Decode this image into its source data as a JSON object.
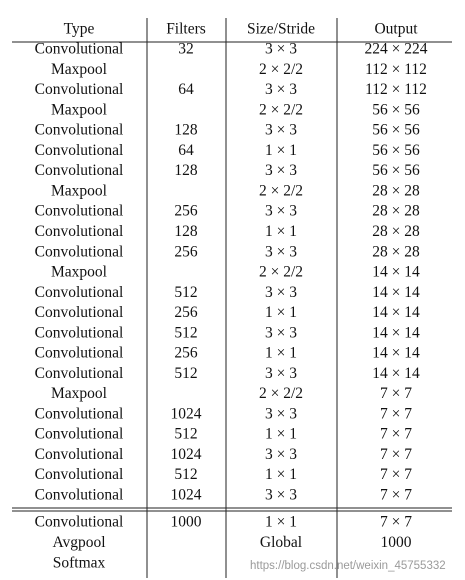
{
  "table": {
    "header": [
      "Type",
      "Filters",
      "Size/Stride",
      "Output"
    ],
    "rows": [
      [
        "Convolutional",
        "32",
        "3 × 3",
        "224 × 224"
      ],
      [
        "Maxpool",
        null,
        "2 × 2/2",
        "112 × 112"
      ],
      [
        "Convolutional",
        "64",
        "3 × 3",
        "112 × 112"
      ],
      [
        "Maxpool",
        null,
        "2 × 2/2",
        "56 × 56"
      ],
      [
        "Convolutional",
        "128",
        "3 × 3",
        "56 × 56"
      ],
      [
        "Convolutional",
        "64",
        "1 × 1",
        "56 × 56"
      ],
      [
        "Convolutional",
        "128",
        "3 × 3",
        "56 × 56"
      ],
      [
        "Maxpool",
        null,
        "2 × 2/2",
        "28 × 28"
      ],
      [
        "Convolutional",
        "256",
        "3 × 3",
        "28 × 28"
      ],
      [
        "Convolutional",
        "128",
        "1 × 1",
        "28 × 28"
      ],
      [
        "Convolutional",
        "256",
        "3 × 3",
        "28 × 28"
      ],
      [
        "Maxpool",
        null,
        "2 × 2/2",
        "14 × 14"
      ],
      [
        "Convolutional",
        "512",
        "3 × 3",
        "14 × 14"
      ],
      [
        "Convolutional",
        "256",
        "1 × 1",
        "14 × 14"
      ],
      [
        "Convolutional",
        "512",
        "3 × 3",
        "14 × 14"
      ],
      [
        "Convolutional",
        "256",
        "1 × 1",
        "14 × 14"
      ],
      [
        "Convolutional",
        "512",
        "3 × 3",
        "14 × 14"
      ],
      [
        "Maxpool",
        null,
        "2 × 2/2",
        "7 × 7"
      ],
      [
        "Convolutional",
        "1024",
        "3 × 3",
        "7 × 7"
      ],
      [
        "Convolutional",
        "512",
        "1 × 1",
        "7 × 7"
      ],
      [
        "Convolutional",
        "1024",
        "3 × 3",
        "7 × 7"
      ],
      [
        "Convolutional",
        "512",
        "1 × 1",
        "7 × 7"
      ],
      [
        "Convolutional",
        "1024",
        "3 × 3",
        "7 × 7"
      ]
    ],
    "footer_rows": [
      [
        "Convolutional",
        "1000",
        "1 × 1",
        "7 × 7"
      ],
      [
        "Avgpool",
        null,
        "Global",
        "1000"
      ],
      [
        "Softmax",
        null,
        null,
        null
      ]
    ]
  },
  "watermark": "https://blog.csdn.net/weixin_45755332"
}
